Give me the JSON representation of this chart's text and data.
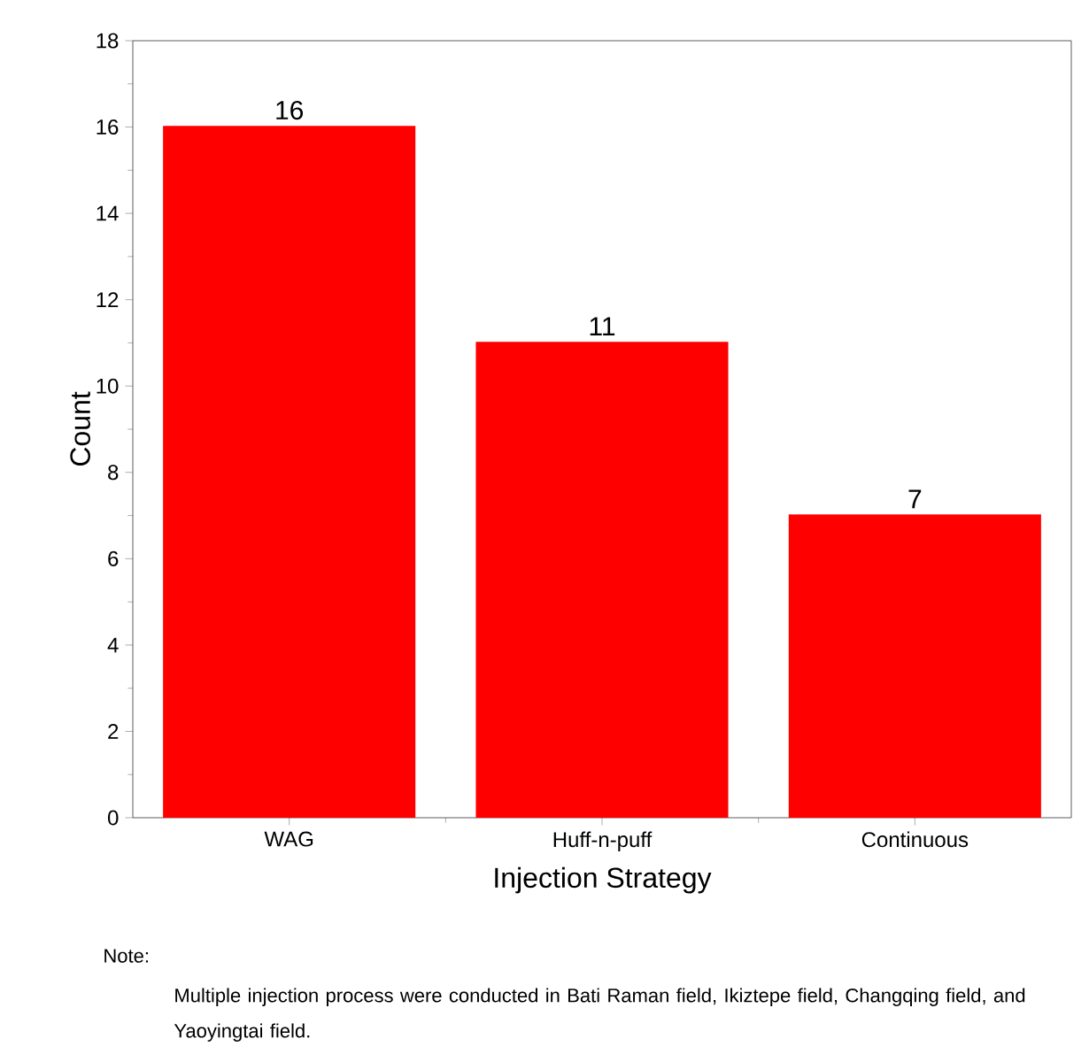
{
  "chart_data": {
    "type": "bar",
    "xlabel": "Injection Strategy",
    "ylabel": "Count",
    "categories": [
      "WAG",
      "Huff-n-puff",
      "Continuous"
    ],
    "values": [
      16,
      11,
      7
    ],
    "color": "#ff0000",
    "ylim": [
      0,
      18
    ],
    "yticks": [
      0,
      2,
      4,
      6,
      8,
      10,
      12,
      14,
      16,
      18
    ],
    "data_labels": true,
    "annotations": [
      "Note:",
      "Multiple injection process were conducted in Bati Raman field, Ikiztepe field, Changqing field, and Yaoyingtai field."
    ]
  }
}
